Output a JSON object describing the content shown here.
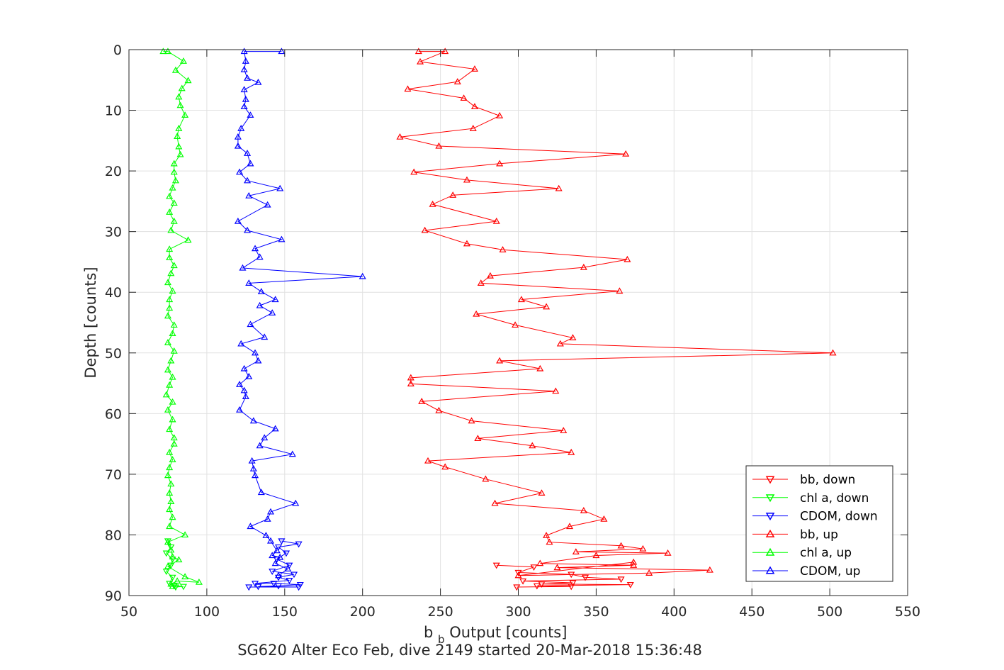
{
  "chart_data": {
    "type": "scatter",
    "xlabel_main": "b",
    "xlabel_sub": "b",
    "xlabel_rest": " Output [counts]",
    "ylabel": "Depth [counts]",
    "caption": "SG620 Alter Eco Feb, dive 2149 started 20-Mar-2018 15:36:48",
    "xlim": [
      50,
      550
    ],
    "ylim": [
      0,
      90
    ],
    "y_reversed": true,
    "grid": true,
    "legend_position": "bottom-right",
    "x_ticks": [
      "50",
      "100",
      "150",
      "200",
      "250",
      "300",
      "350",
      "400",
      "450",
      "500",
      "550"
    ],
    "y_ticks": [
      "0",
      "10",
      "20",
      "30",
      "40",
      "50",
      "60",
      "70",
      "80",
      "90"
    ],
    "series": [
      {
        "name": "bb, down",
        "color": "#ff0000",
        "marker": "down",
        "points": [
          [
            286,
            85
          ],
          [
            310,
            85.3
          ],
          [
            300,
            86.2
          ],
          [
            334,
            86.5
          ],
          [
            343,
            87
          ],
          [
            366,
            87.3
          ],
          [
            303,
            87.6
          ],
          [
            335,
            87.9
          ],
          [
            315,
            88.1
          ],
          [
            372,
            88.2
          ],
          [
            312,
            88.4
          ],
          [
            334,
            88.5
          ],
          [
            299,
            88.6
          ]
        ]
      },
      {
        "name": "chl a, down",
        "color": "#00ff00",
        "marker": "down",
        "points": [
          [
            75,
            81
          ],
          [
            77,
            82
          ],
          [
            74,
            83
          ],
          [
            78,
            84
          ],
          [
            77,
            85
          ],
          [
            74,
            86
          ],
          [
            78,
            87
          ],
          [
            76,
            88
          ],
          [
            79,
            88.4
          ],
          [
            85,
            88.5
          ],
          [
            80,
            88.6
          ]
        ]
      },
      {
        "name": "CDOM, down",
        "color": "#0000ff",
        "marker": "down",
        "points": [
          [
            148,
            81
          ],
          [
            159,
            81.5
          ],
          [
            146,
            82
          ],
          [
            151,
            83
          ],
          [
            145,
            84
          ],
          [
            153,
            85
          ],
          [
            142,
            86
          ],
          [
            156,
            86.5
          ],
          [
            146,
            87
          ],
          [
            153,
            87.5
          ],
          [
            131,
            88
          ],
          [
            143,
            88
          ],
          [
            160,
            88.2
          ],
          [
            146,
            88.4
          ],
          [
            133,
            88.5
          ],
          [
            159,
            88.6
          ],
          [
            127,
            88.6
          ]
        ]
      },
      {
        "name": "bb, up",
        "color": "#ff0000",
        "marker": "up",
        "points": [
          [
            236,
            0.3
          ],
          [
            253,
            0.3
          ],
          [
            237,
            2
          ],
          [
            272,
            3.2
          ],
          [
            261,
            5.3
          ],
          [
            229,
            6.5
          ],
          [
            265,
            8
          ],
          [
            272,
            9.4
          ],
          [
            288,
            10.9
          ],
          [
            271,
            13
          ],
          [
            224,
            14.4
          ],
          [
            249,
            15.9
          ],
          [
            369,
            17.2
          ],
          [
            288,
            18.8
          ],
          [
            233,
            20.2
          ],
          [
            267,
            21.5
          ],
          [
            326,
            22.9
          ],
          [
            258,
            24
          ],
          [
            245,
            25.5
          ],
          [
            286,
            28.3
          ],
          [
            240,
            29.8
          ],
          [
            267,
            32
          ],
          [
            290,
            33
          ],
          [
            370,
            34.6
          ],
          [
            342,
            35.9
          ],
          [
            282,
            37.3
          ],
          [
            276,
            38.5
          ],
          [
            365,
            39.8
          ],
          [
            302,
            41.2
          ],
          [
            318,
            42.4
          ],
          [
            273,
            43.6
          ],
          [
            298,
            45.4
          ],
          [
            335,
            47.5
          ],
          [
            327,
            48.5
          ],
          [
            502,
            50
          ],
          [
            288,
            51.3
          ],
          [
            314,
            52.6
          ],
          [
            231,
            54.1
          ],
          [
            231,
            55.1
          ],
          [
            324,
            56.3
          ],
          [
            238,
            58
          ],
          [
            249,
            59.5
          ],
          [
            270,
            61.2
          ],
          [
            329,
            62.8
          ],
          [
            274,
            64.1
          ],
          [
            309,
            65.3
          ],
          [
            334,
            66.4
          ],
          [
            242,
            67.8
          ],
          [
            253,
            68.8
          ],
          [
            279,
            70.8
          ],
          [
            315,
            73.1
          ],
          [
            285,
            74.8
          ],
          [
            342,
            76
          ],
          [
            355,
            77.4
          ],
          [
            333,
            78.6
          ],
          [
            318,
            80.1
          ],
          [
            320,
            81.2
          ],
          [
            366,
            81.8
          ],
          [
            380,
            82.3
          ],
          [
            337,
            82.8
          ],
          [
            396,
            83
          ],
          [
            350,
            83.4
          ],
          [
            314,
            84.7
          ],
          [
            374,
            85
          ],
          [
            325,
            85.4
          ],
          [
            423,
            85.8
          ],
          [
            384,
            86.3
          ],
          [
            300,
            86.7
          ],
          [
            374,
            84.5
          ]
        ]
      },
      {
        "name": "chl a, up",
        "color": "#00ff00",
        "marker": "up",
        "points": [
          [
            72,
            0.3
          ],
          [
            75,
            0.3
          ],
          [
            85,
            1.9
          ],
          [
            80,
            3.4
          ],
          [
            88,
            5.1
          ],
          [
            84,
            6.4
          ],
          [
            82,
            7.8
          ],
          [
            83,
            9.2
          ],
          [
            86,
            10.8
          ],
          [
            82,
            13
          ],
          [
            81,
            14.3
          ],
          [
            82,
            16
          ],
          [
            83,
            17.3
          ],
          [
            79,
            18.8
          ],
          [
            79,
            20.2
          ],
          [
            80,
            21.6
          ],
          [
            78,
            22.8
          ],
          [
            76,
            24.2
          ],
          [
            79,
            25.3
          ],
          [
            76,
            26.8
          ],
          [
            79,
            28.3
          ],
          [
            77,
            29.8
          ],
          [
            88,
            31.4
          ],
          [
            76,
            32.9
          ],
          [
            76,
            34.3
          ],
          [
            79,
            35.6
          ],
          [
            77,
            36.9
          ],
          [
            75,
            38.4
          ],
          [
            78,
            39.8
          ],
          [
            76,
            41.2
          ],
          [
            76,
            42.6
          ],
          [
            75,
            43.9
          ],
          [
            79,
            45.4
          ],
          [
            78,
            46.8
          ],
          [
            75,
            48.3
          ],
          [
            79,
            49.7
          ],
          [
            77,
            51.3
          ],
          [
            75,
            52.8
          ],
          [
            78,
            54
          ],
          [
            76,
            55.3
          ],
          [
            74,
            56.9
          ],
          [
            78,
            58.1
          ],
          [
            75,
            59.4
          ],
          [
            78,
            61
          ],
          [
            76,
            62.6
          ],
          [
            79,
            64
          ],
          [
            79,
            65
          ],
          [
            76,
            66.4
          ],
          [
            78,
            67.6
          ],
          [
            76,
            68.9
          ],
          [
            75,
            70.2
          ],
          [
            77,
            71.6
          ],
          [
            76,
            73.1
          ],
          [
            77,
            74.5
          ],
          [
            76,
            75.8
          ],
          [
            78,
            77.1
          ],
          [
            76,
            78.6
          ],
          [
            86,
            80
          ],
          [
            75,
            81.2
          ],
          [
            77,
            82.5
          ],
          [
            78,
            83.6
          ],
          [
            82,
            84.1
          ],
          [
            75,
            85.2
          ],
          [
            86,
            86.9
          ],
          [
            95,
            87.8
          ],
          [
            81,
            87.6
          ],
          [
            77,
            88.1
          ],
          [
            78,
            88.5
          ]
        ]
      },
      {
        "name": "CDOM, up",
        "color": "#0000ff",
        "marker": "up",
        "points": [
          [
            148,
            0.3
          ],
          [
            124,
            0.3
          ],
          [
            125,
            1.9
          ],
          [
            124,
            3.3
          ],
          [
            126,
            4.7
          ],
          [
            133,
            5.4
          ],
          [
            124,
            6.6
          ],
          [
            125,
            8.2
          ],
          [
            124,
            9.4
          ],
          [
            128,
            10.8
          ],
          [
            122,
            13
          ],
          [
            120,
            14.4
          ],
          [
            120,
            15.9
          ],
          [
            126,
            17.1
          ],
          [
            128,
            18.8
          ],
          [
            121,
            20.2
          ],
          [
            126,
            21.6
          ],
          [
            147,
            22.9
          ],
          [
            127,
            24.1
          ],
          [
            139,
            25.6
          ],
          [
            120,
            28.3
          ],
          [
            126,
            29.8
          ],
          [
            148,
            31.3
          ],
          [
            131,
            32.8
          ],
          [
            134,
            34.2
          ],
          [
            123,
            36
          ],
          [
            200,
            37.4
          ],
          [
            127,
            38.5
          ],
          [
            135,
            39.9
          ],
          [
            144,
            41.2
          ],
          [
            134,
            42.2
          ],
          [
            142,
            43.4
          ],
          [
            128,
            45.3
          ],
          [
            137,
            47.4
          ],
          [
            122,
            48.5
          ],
          [
            131,
            50
          ],
          [
            133,
            51.3
          ],
          [
            124,
            52.6
          ],
          [
            127,
            53.9
          ],
          [
            121,
            55.2
          ],
          [
            124,
            56.2
          ],
          [
            125,
            57.2
          ],
          [
            121,
            59.4
          ],
          [
            130,
            61.2
          ],
          [
            144,
            62.5
          ],
          [
            137,
            64
          ],
          [
            134,
            65.3
          ],
          [
            155,
            66.7
          ],
          [
            129,
            67.8
          ],
          [
            130,
            69.1
          ],
          [
            131,
            70.2
          ],
          [
            135,
            73
          ],
          [
            157,
            74.8
          ],
          [
            141,
            76.2
          ],
          [
            139,
            77.4
          ],
          [
            128,
            78.6
          ],
          [
            138,
            80.1
          ],
          [
            141,
            81
          ],
          [
            145,
            82.6
          ],
          [
            142,
            83.4
          ],
          [
            147,
            83.7
          ],
          [
            144,
            84.7
          ],
          [
            152,
            85.6
          ],
          [
            146,
            86.7
          ]
        ]
      }
    ]
  }
}
